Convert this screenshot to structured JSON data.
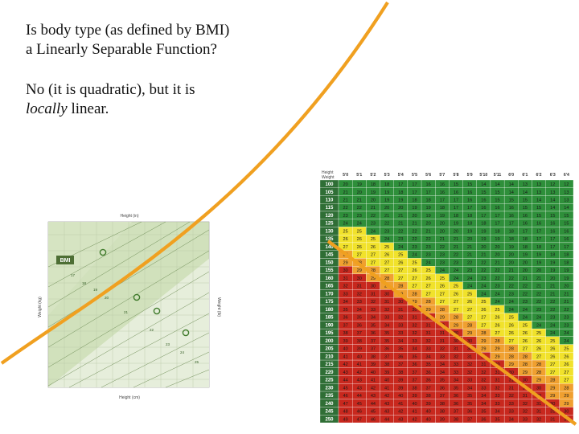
{
  "slide": {
    "line1": "Is body type (as defined by BMI)",
    "line2": "a Linearly Separable Function?",
    "line3": "No (it is quadratic), but it is",
    "line4_italic": "locally",
    "line4_rest": " linear."
  },
  "bmi_chart": {
    "top_label": "Height (in)",
    "bottom_label": "Height (cm)",
    "left_label": "Weight (kg)",
    "right_label": "Weight (lb)",
    "badge": "BMI"
  },
  "bmi_table": {
    "corner_top": "Height",
    "corner_bottom": "Weight",
    "heights": [
      "5'0",
      "5'1",
      "5'2",
      "5'3",
      "5'4",
      "5'5",
      "5'6",
      "5'7",
      "5'8",
      "5'9",
      "5'10",
      "5'11",
      "6'0",
      "6'1",
      "6'2",
      "6'3",
      "6'4"
    ],
    "weights": [
      "100",
      "105",
      "110",
      "115",
      "120",
      "125",
      "130",
      "135",
      "140",
      "145",
      "150",
      "155",
      "160",
      "165",
      "170",
      "175",
      "180",
      "185",
      "190",
      "195",
      "200",
      "205",
      "210",
      "215",
      "220",
      "225",
      "230",
      "235",
      "240",
      "245",
      "250"
    ]
  },
  "colors": {
    "green": "#2e8f3a",
    "yellow": "#f1e22b",
    "orange": "#f0a030",
    "red": "#c8281e",
    "header": "#2f6e35",
    "arc": "#f0a020"
  }
}
